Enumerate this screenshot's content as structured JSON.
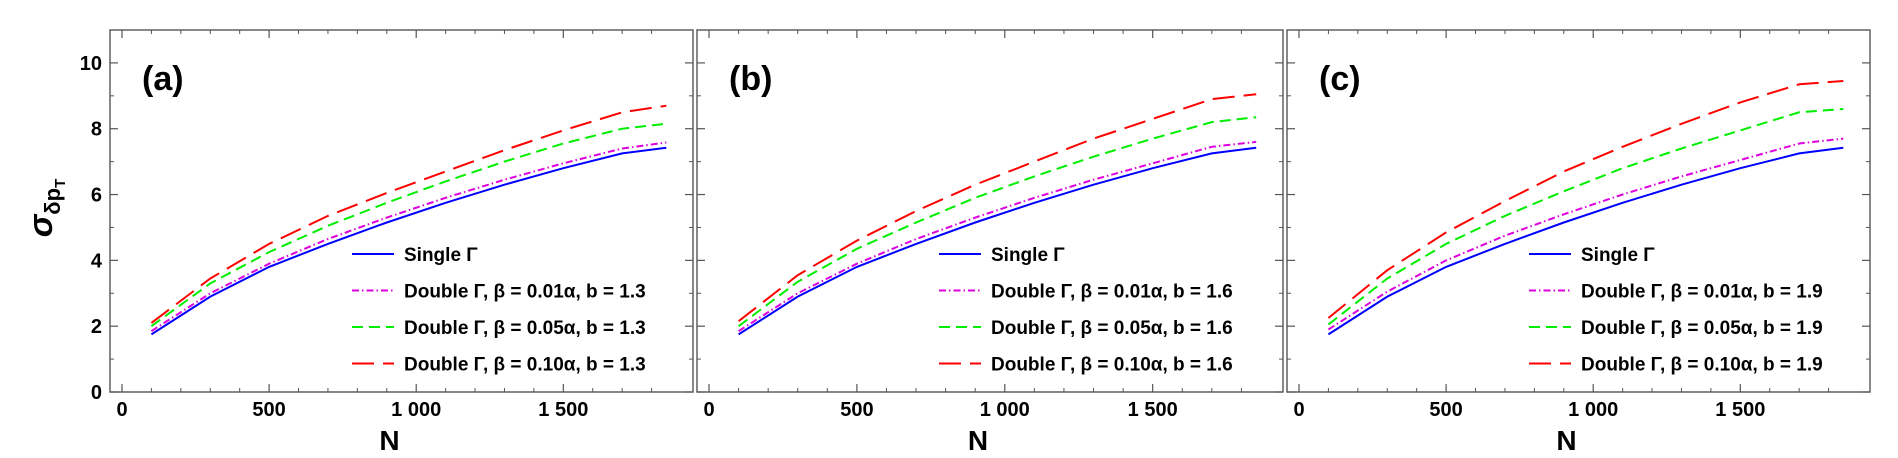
{
  "figure": {
    "ylabel_main": "σ",
    "ylabel_sub": "δp",
    "ylabel_subsub": "T"
  },
  "chart_data": [
    {
      "type": "line",
      "panel_label": "(a)",
      "xlabel": "N",
      "xlim": [
        0,
        1900
      ],
      "ylim": [
        0,
        11
      ],
      "xticks": [
        0,
        500,
        1000,
        1500
      ],
      "xtick_labels": [
        "0",
        "500",
        "1 000",
        "1 500"
      ],
      "yticks": [
        0,
        2,
        4,
        6,
        8,
        10
      ],
      "ytick_labels": [
        "0",
        "2",
        "4",
        "6",
        "8",
        "10"
      ],
      "legend_position": "bottom-right",
      "x": [
        100,
        300,
        500,
        700,
        900,
        1100,
        1300,
        1500,
        1700,
        1850
      ],
      "series": [
        {
          "name": "Single Γ",
          "color": "#0000ff",
          "dash": "solid",
          "values": [
            1.75,
            2.9,
            3.8,
            4.5,
            5.15,
            5.75,
            6.3,
            6.8,
            7.25,
            7.42
          ]
        },
        {
          "name": "Double Γ, β = 0.01α, b = 1.3",
          "color": "#dd00dd",
          "dash": "dashdot",
          "values": [
            1.85,
            3.0,
            3.9,
            4.65,
            5.3,
            5.9,
            6.45,
            6.95,
            7.4,
            7.58
          ]
        },
        {
          "name": "Double Γ, β = 0.05α, b = 1.3",
          "color": "#00ee00",
          "dash": "dash",
          "values": [
            2.0,
            3.3,
            4.25,
            5.05,
            5.75,
            6.4,
            7.0,
            7.55,
            8.0,
            8.15
          ]
        },
        {
          "name": "Double Γ, β = 0.10α, b = 1.3",
          "color": "#ff0000",
          "dash": "longdash",
          "values": [
            2.1,
            3.45,
            4.5,
            5.35,
            6.05,
            6.7,
            7.35,
            7.95,
            8.5,
            8.7
          ]
        }
      ]
    },
    {
      "type": "line",
      "panel_label": "(b)",
      "xlabel": "N",
      "xlim": [
        0,
        1900
      ],
      "ylim": [
        0,
        11
      ],
      "xticks": [
        0,
        500,
        1000,
        1500
      ],
      "xtick_labels": [
        "0",
        "500",
        "1 000",
        "1 500"
      ],
      "yticks": [
        0,
        2,
        4,
        6,
        8,
        10
      ],
      "ytick_labels": [],
      "legend_position": "bottom-right",
      "x": [
        100,
        300,
        500,
        700,
        900,
        1100,
        1300,
        1500,
        1700,
        1850
      ],
      "series": [
        {
          "name": "Single Γ",
          "color": "#0000ff",
          "dash": "solid",
          "values": [
            1.75,
            2.9,
            3.8,
            4.5,
            5.15,
            5.75,
            6.3,
            6.8,
            7.25,
            7.42
          ]
        },
        {
          "name": "Double Γ, β = 0.01α, b = 1.6",
          "color": "#dd00dd",
          "dash": "dashdot",
          "values": [
            1.85,
            3.0,
            3.9,
            4.65,
            5.3,
            5.9,
            6.45,
            6.95,
            7.45,
            7.6
          ]
        },
        {
          "name": "Double Γ, β = 0.05α, b = 1.6",
          "color": "#00ee00",
          "dash": "dash",
          "values": [
            2.0,
            3.35,
            4.35,
            5.15,
            5.9,
            6.55,
            7.15,
            7.7,
            8.2,
            8.35
          ]
        },
        {
          "name": "Double Γ, β = 0.10α, b = 1.6",
          "color": "#ff0000",
          "dash": "longdash",
          "values": [
            2.15,
            3.55,
            4.6,
            5.5,
            6.3,
            7.0,
            7.7,
            8.3,
            8.9,
            9.05
          ]
        }
      ]
    },
    {
      "type": "line",
      "panel_label": "(c)",
      "xlabel": "N",
      "xlim": [
        0,
        1900
      ],
      "ylim": [
        0,
        11
      ],
      "xticks": [
        0,
        500,
        1000,
        1500
      ],
      "xtick_labels": [
        "0",
        "500",
        "1 000",
        "1 500"
      ],
      "yticks": [
        0,
        2,
        4,
        6,
        8,
        10
      ],
      "ytick_labels": [],
      "legend_position": "bottom-right",
      "x": [
        100,
        300,
        500,
        700,
        900,
        1100,
        1300,
        1500,
        1700,
        1850
      ],
      "series": [
        {
          "name": "Single Γ",
          "color": "#0000ff",
          "dash": "solid",
          "values": [
            1.75,
            2.9,
            3.8,
            4.5,
            5.15,
            5.75,
            6.3,
            6.8,
            7.25,
            7.42
          ]
        },
        {
          "name": "Double Γ, β = 0.01α, b = 1.9",
          "color": "#dd00dd",
          "dash": "dashdot",
          "values": [
            1.9,
            3.05,
            4.0,
            4.75,
            5.4,
            6.0,
            6.55,
            7.05,
            7.55,
            7.7
          ]
        },
        {
          "name": "Double Γ, β = 0.05α, b = 1.9",
          "color": "#00ee00",
          "dash": "dash",
          "values": [
            2.05,
            3.45,
            4.5,
            5.35,
            6.1,
            6.8,
            7.4,
            7.95,
            8.5,
            8.6
          ]
        },
        {
          "name": "Double Γ, β = 0.10α, b = 1.9",
          "color": "#ff0000",
          "dash": "longdash",
          "values": [
            2.25,
            3.7,
            4.85,
            5.8,
            6.7,
            7.45,
            8.15,
            8.8,
            9.35,
            9.45
          ]
        }
      ]
    }
  ]
}
